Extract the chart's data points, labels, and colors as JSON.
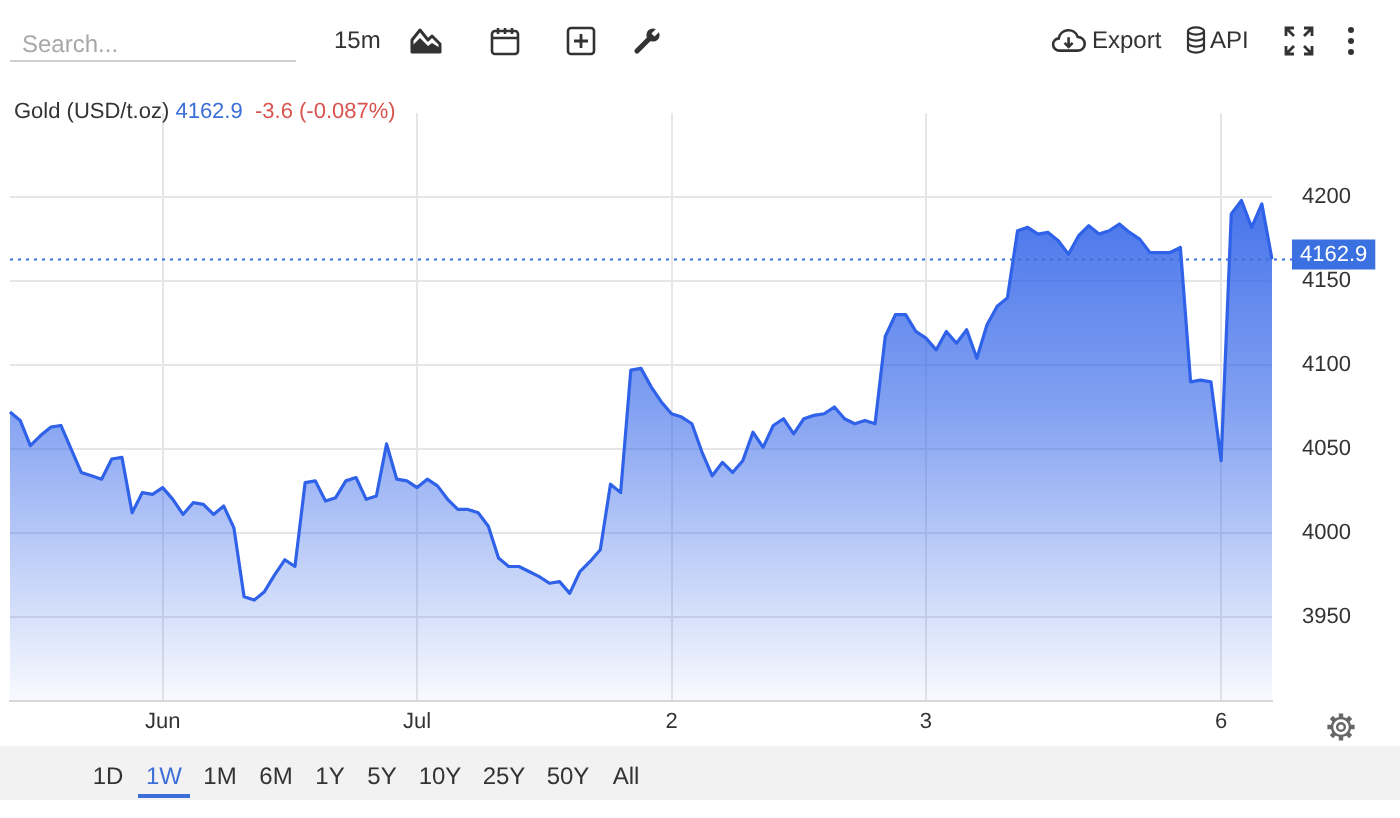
{
  "chart_data": {
    "type": "area",
    "title": "Gold (USD/t.oz)",
    "annotations": [
      "4162.9",
      "-3.6 (-0.087%)",
      "Search...",
      "15m",
      "Export",
      "API",
      "1D",
      "1W",
      "1M",
      "6M",
      "1Y",
      "5Y",
      "10Y",
      "25Y",
      "50Y",
      "All"
    ],
    "categories": [
      null,
      null,
      null,
      null,
      null,
      null,
      null,
      null,
      null,
      null,
      null,
      null,
      null,
      null,
      null,
      "Jun",
      null,
      null,
      null,
      null,
      null,
      null,
      null,
      null,
      null,
      null,
      null,
      null,
      null,
      null,
      null,
      null,
      null,
      null,
      null,
      null,
      null,
      null,
      null,
      null,
      "Jul",
      null,
      null,
      null,
      null,
      null,
      null,
      null,
      null,
      null,
      null,
      null,
      null,
      null,
      null,
      null,
      null,
      null,
      null,
      null,
      null,
      null,
      null,
      null,
      null,
      "2",
      null,
      null,
      null,
      null,
      null,
      null,
      null,
      null,
      null,
      null,
      null,
      null,
      null,
      null,
      null,
      null,
      null,
      null,
      null,
      null,
      null,
      null,
      null,
      null,
      "3",
      null,
      null,
      null,
      null,
      null,
      null,
      null,
      null,
      null,
      null,
      null,
      null,
      null,
      null,
      null,
      null,
      null,
      null,
      null,
      null,
      null,
      null,
      null,
      null,
      null,
      null,
      null,
      null,
      "6",
      null,
      null,
      null,
      null,
      null
    ],
    "values": [
      4072,
      4067,
      4052,
      4058,
      4063,
      4064,
      4050,
      4036,
      4034,
      4032,
      4044,
      4045,
      4012,
      4024,
      4023,
      4027,
      4020,
      4011,
      4018,
      4017,
      4011,
      4016,
      4003,
      3962,
      3960,
      3965,
      3975,
      3984,
      3980,
      4030,
      4031,
      4019,
      4021,
      4031,
      4033,
      4020,
      4022,
      4053,
      4032,
      4031,
      4027,
      4032,
      4028,
      4020,
      4014,
      4014,
      4012,
      4004,
      3985,
      3980,
      3980,
      3977,
      3974,
      3970,
      3971,
      3964,
      3977,
      3983,
      3990,
      4029,
      4024,
      4097,
      4098,
      4087,
      4078,
      4071,
      4069,
      4065,
      4048,
      4034,
      4042,
      4036,
      4043,
      4060,
      4051,
      4064,
      4068,
      4059,
      4068,
      4070,
      4071,
      4075,
      4068,
      4065,
      4067,
      4065,
      4117,
      4130,
      4130,
      4120,
      4116,
      4109,
      4120,
      4113,
      4121,
      4104,
      4124,
      4135,
      4140,
      4180,
      4182,
      4178,
      4179,
      4174,
      4166,
      4177,
      4183,
      4178,
      4180,
      4184,
      4179,
      4175,
      4167,
      4167,
      4167,
      4170,
      4090,
      4091,
      4090,
      4043,
      4190,
      4198,
      4182,
      4196,
      4163
    ],
    "color": "#2f62e8",
    "ylim": [
      3900,
      4250
    ],
    "yticks": [
      3950,
      4000,
      4050,
      4100,
      4150,
      4200
    ],
    "ref_lines": [
      {
        "axis": "y",
        "value": 4162.9,
        "label": "4162.9",
        "color": "#3a70e0",
        "line_style": "dotted"
      }
    ],
    "grid": true,
    "marker": "none"
  }
}
